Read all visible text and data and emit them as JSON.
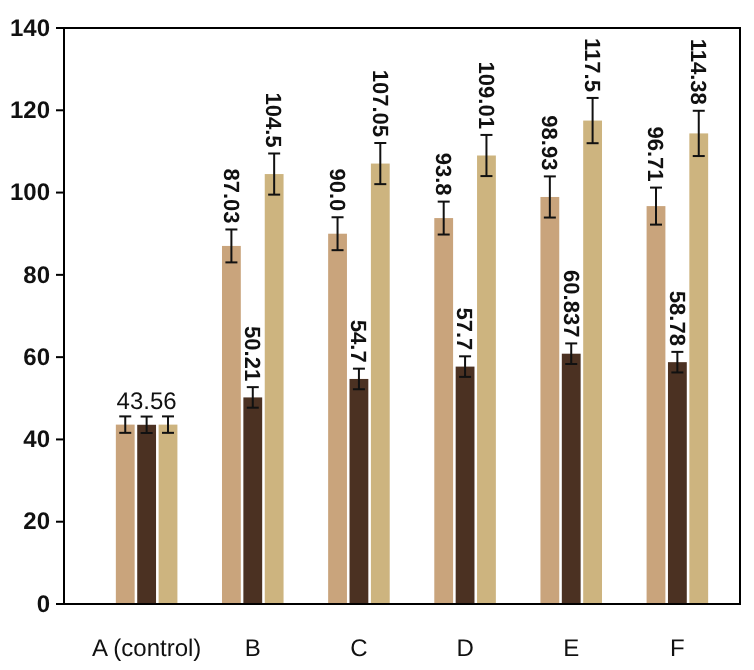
{
  "chart_data": {
    "type": "bar",
    "categories": [
      "A (control)",
      "B",
      "C",
      "D",
      "E",
      "F"
    ],
    "series": [
      {
        "color": "#c9a47c",
        "values": [
          43.6,
          87.03,
          90.0,
          93.8,
          98.93,
          96.71
        ],
        "errors": [
          2,
          4,
          4,
          4,
          5,
          4.5
        ],
        "value_labels": [
          null,
          "87.03",
          "90.0",
          "93.8",
          "98.93",
          "96.71"
        ]
      },
      {
        "color": "#4b3122",
        "values": [
          43.56,
          50.21,
          54.7,
          57.7,
          60.837,
          58.78
        ],
        "errors": [
          2,
          2.5,
          2.5,
          2.5,
          2.5,
          2.5
        ],
        "value_labels": [
          "43.56",
          "50.21",
          "54.7",
          "57.7",
          "60.837",
          "58.78"
        ]
      },
      {
        "color": "#cdb47f",
        "values": [
          43.6,
          104.5,
          107.05,
          109.01,
          117.5,
          114.38
        ],
        "errors": [
          2,
          5,
          5,
          5,
          5.5,
          5.5
        ],
        "value_labels": [
          null,
          "104.5",
          "107.05",
          "109.01",
          "117.5",
          "114.38"
        ]
      }
    ],
    "ylim": [
      0,
      140
    ],
    "yticks": [
      0,
      20,
      40,
      60,
      80,
      100,
      120,
      140
    ],
    "grid": false
  }
}
